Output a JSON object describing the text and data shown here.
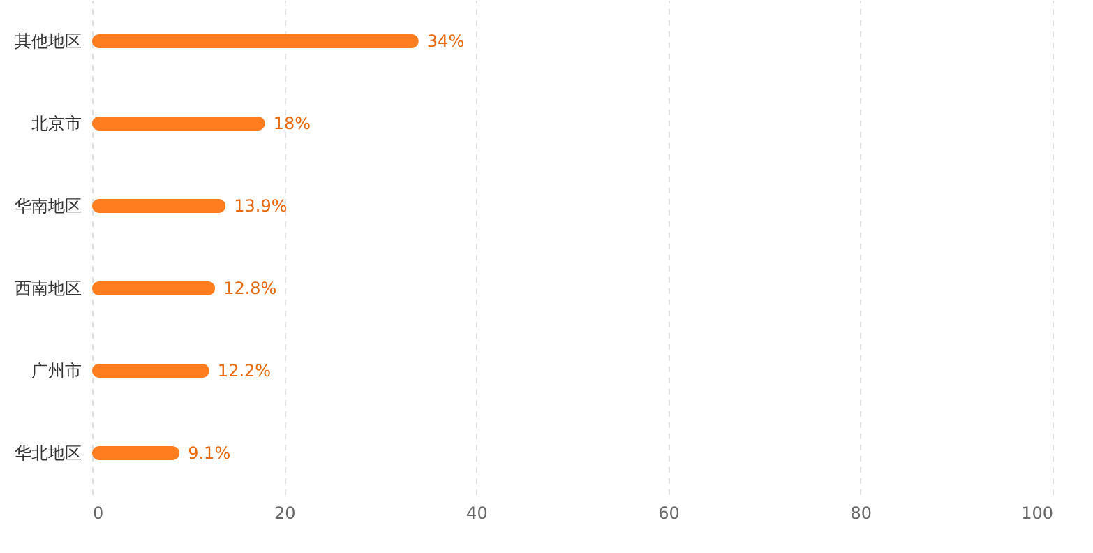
{
  "chart_data": {
    "type": "bar",
    "orientation": "horizontal",
    "categories": [
      "其他地区",
      "北京市",
      "华南地区",
      "西南地区",
      "广州市",
      "华北地区"
    ],
    "values": [
      34,
      18,
      13.9,
      12.8,
      12.2,
      9.1
    ],
    "value_labels": [
      "34%",
      "18%",
      "13.9%",
      "12.8%",
      "12.2%",
      "9.1%"
    ],
    "color": "#ff7d1f",
    "xlim": [
      0,
      100
    ],
    "xticks": [
      0,
      20,
      40,
      60,
      80,
      100
    ],
    "grid": "x",
    "line_style": "dashed"
  }
}
